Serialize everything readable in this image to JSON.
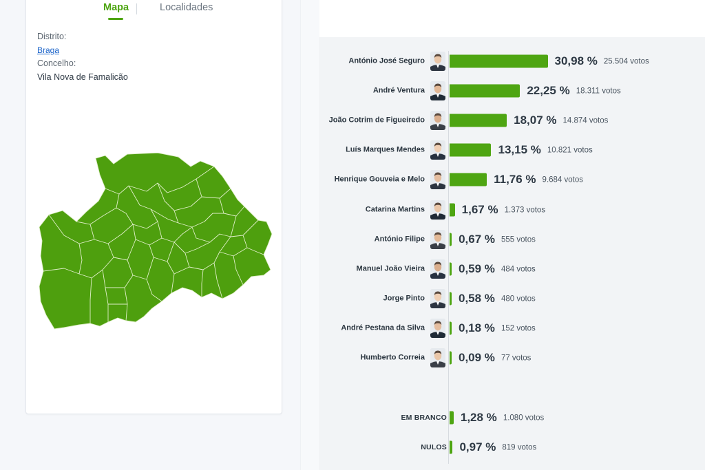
{
  "tabs": {
    "map_label": "Mapa",
    "localities_label": "Localidades"
  },
  "location": {
    "district_label": "Distrito:",
    "district_value": "Braga",
    "municipality_label": "Concelho:",
    "municipality_value": "Vila Nova de Famalicão"
  },
  "colors": {
    "accent": "#4ea512",
    "map_fill": "#4e9f0e",
    "link": "#1a63c9"
  },
  "results": {
    "candidates": [
      {
        "name": "António José Seguro",
        "percent": "30,98 %",
        "votes": "25.504 votos",
        "value": 30.98,
        "icon": "candidate-photo"
      },
      {
        "name": "André Ventura",
        "percent": "22,25 %",
        "votes": "18.311 votos",
        "value": 22.25,
        "icon": "candidate-photo"
      },
      {
        "name": "João Cotrim de Figueiredo",
        "percent": "18,07 %",
        "votes": "14.874 votos",
        "value": 18.07,
        "icon": "candidate-photo"
      },
      {
        "name": "Luís Marques Mendes",
        "percent": "13,15 %",
        "votes": "10.821 votos",
        "value": 13.15,
        "icon": "candidate-photo"
      },
      {
        "name": "Henrique Gouveia e Melo",
        "percent": "11,76 %",
        "votes": "9.684 votos",
        "value": 11.76,
        "icon": "candidate-photo"
      },
      {
        "name": "Catarina Martins",
        "percent": "1,67 %",
        "votes": "1.373 votos",
        "value": 1.67,
        "icon": "candidate-photo"
      },
      {
        "name": "António Filipe",
        "percent": "0,67 %",
        "votes": "555 votos",
        "value": 0.67,
        "icon": "candidate-photo"
      },
      {
        "name": "Manuel João Vieira",
        "percent": "0,59 %",
        "votes": "484 votos",
        "value": 0.59,
        "icon": "candidate-photo"
      },
      {
        "name": "Jorge Pinto",
        "percent": "0,58 %",
        "votes": "480 votos",
        "value": 0.58,
        "icon": "candidate-photo"
      },
      {
        "name": "André Pestana da Silva",
        "percent": "0,18 %",
        "votes": "152 votos",
        "value": 0.18,
        "icon": "candidate-photo"
      },
      {
        "name": "Humberto Correia",
        "percent": "0,09 %",
        "votes": "77 votos",
        "value": 0.09,
        "icon": "candidate-photo"
      }
    ],
    "special": [
      {
        "name": "EM BRANCO",
        "percent": "1,28 %",
        "votes": "1.080 votos",
        "value": 1.28
      },
      {
        "name": "NULOS",
        "percent": "0,97 %",
        "votes": "819 votos",
        "value": 0.97
      }
    ]
  }
}
